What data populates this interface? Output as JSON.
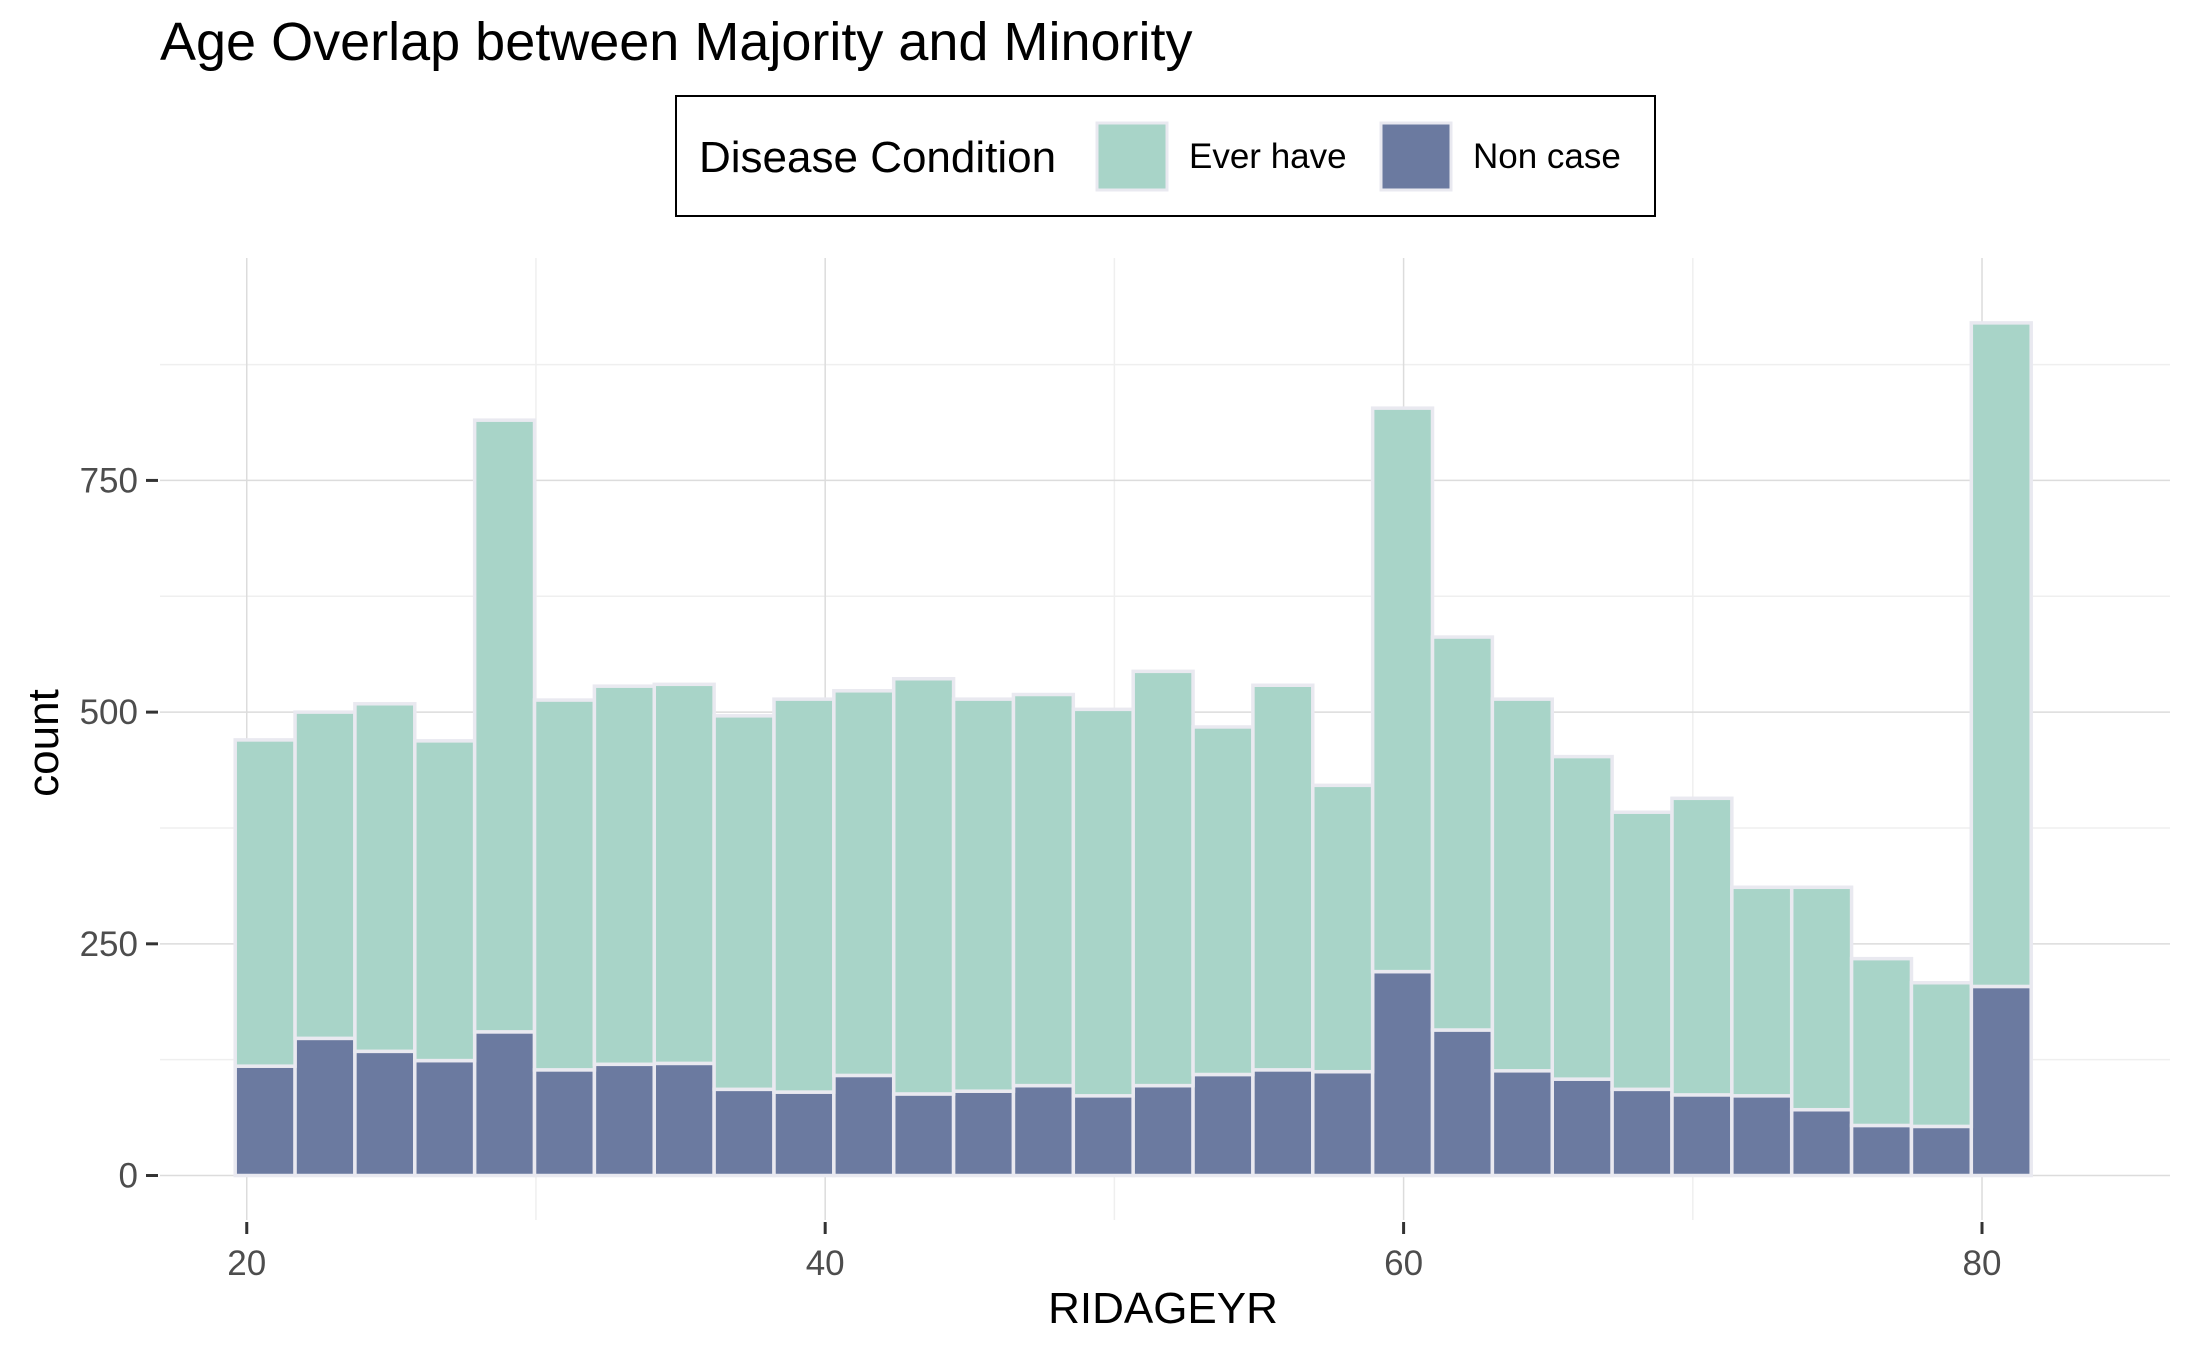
{
  "chart_data": {
    "type": "bar",
    "stacked": true,
    "histogram": true,
    "title": "Age Overlap between Majority and Minority",
    "xlabel": "RIDAGEYR",
    "ylabel": "count",
    "xlim": [
      17,
      86.5
    ],
    "ylim": [
      -48,
      990
    ],
    "x_ticks": [
      20,
      40,
      60,
      80
    ],
    "y_ticks": [
      0,
      250,
      500,
      750
    ],
    "grid": true,
    "legend": {
      "title": "Disease Condition",
      "position": "top",
      "entries": [
        "Ever have",
        "Non case"
      ]
    },
    "bin_edges": [
      19.6,
      21.67,
      23.74,
      25.81,
      27.88,
      29.95,
      32.02,
      34.09,
      36.16,
      38.23,
      40.3,
      42.37,
      44.44,
      46.51,
      48.58,
      50.65,
      52.72,
      54.79,
      56.86,
      58.93,
      61.0,
      63.07,
      65.14,
      67.21,
      69.28,
      71.35,
      73.42,
      75.49,
      77.56,
      79.63,
      81.7
    ],
    "series": [
      {
        "name": "Non case",
        "color": "#6b7aa0",
        "values": [
          118,
          148,
          134,
          124,
          155,
          114,
          120,
          121,
          93,
          90,
          108,
          88,
          91,
          97,
          86,
          97,
          109,
          114,
          112,
          220,
          157,
          113,
          104,
          93,
          87,
          86,
          71,
          54,
          53,
          204
        ]
      },
      {
        "name": "Ever have",
        "color": "#a8d4c8",
        "values": [
          352,
          352,
          375,
          345,
          660,
          399,
          408,
          409,
          403,
          424,
          415,
          448,
          423,
          422,
          417,
          447,
          375,
          415,
          309,
          608,
          424,
          401,
          348,
          299,
          320,
          225,
          240,
          180,
          155,
          716
        ]
      }
    ],
    "colors": {
      "ever_have": "#a8d4c8",
      "non_case": "#6b7aa0",
      "bar_outline": "#e9e9f0",
      "grid_major": "#dcdcdc",
      "grid_minor": "#efefef",
      "axis_text": "#4d4d4d"
    }
  }
}
